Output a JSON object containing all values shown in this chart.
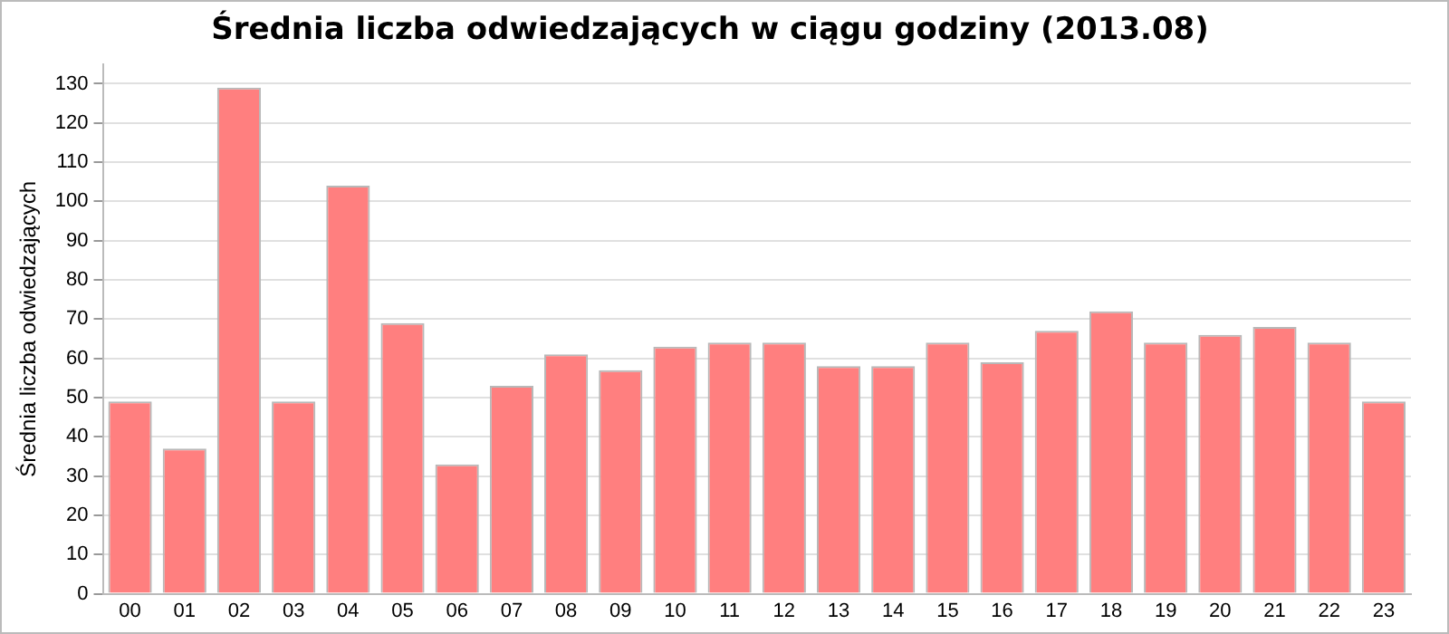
{
  "chart_data": {
    "type": "bar",
    "title": "Średnia liczba odwiedzających w ciągu godziny (2013.08)",
    "ylabel": "Średnia liczba odwiedzających",
    "categories": [
      "00",
      "01",
      "02",
      "03",
      "04",
      "05",
      "06",
      "07",
      "08",
      "09",
      "10",
      "11",
      "12",
      "13",
      "14",
      "15",
      "16",
      "17",
      "18",
      "19",
      "20",
      "21",
      "22",
      "23"
    ],
    "values": [
      49,
      37,
      129,
      49,
      104,
      69,
      33,
      53,
      61,
      57,
      63,
      64,
      64,
      58,
      58,
      64,
      59,
      67,
      72,
      64,
      66,
      68,
      64,
      49
    ],
    "color": "#ff7f7f",
    "ylim": [
      0,
      135
    ],
    "yticks": [
      0,
      10,
      20,
      30,
      40,
      50,
      60,
      70,
      80,
      90,
      100,
      110,
      120,
      130
    ],
    "grid": "y",
    "legend": false
  }
}
